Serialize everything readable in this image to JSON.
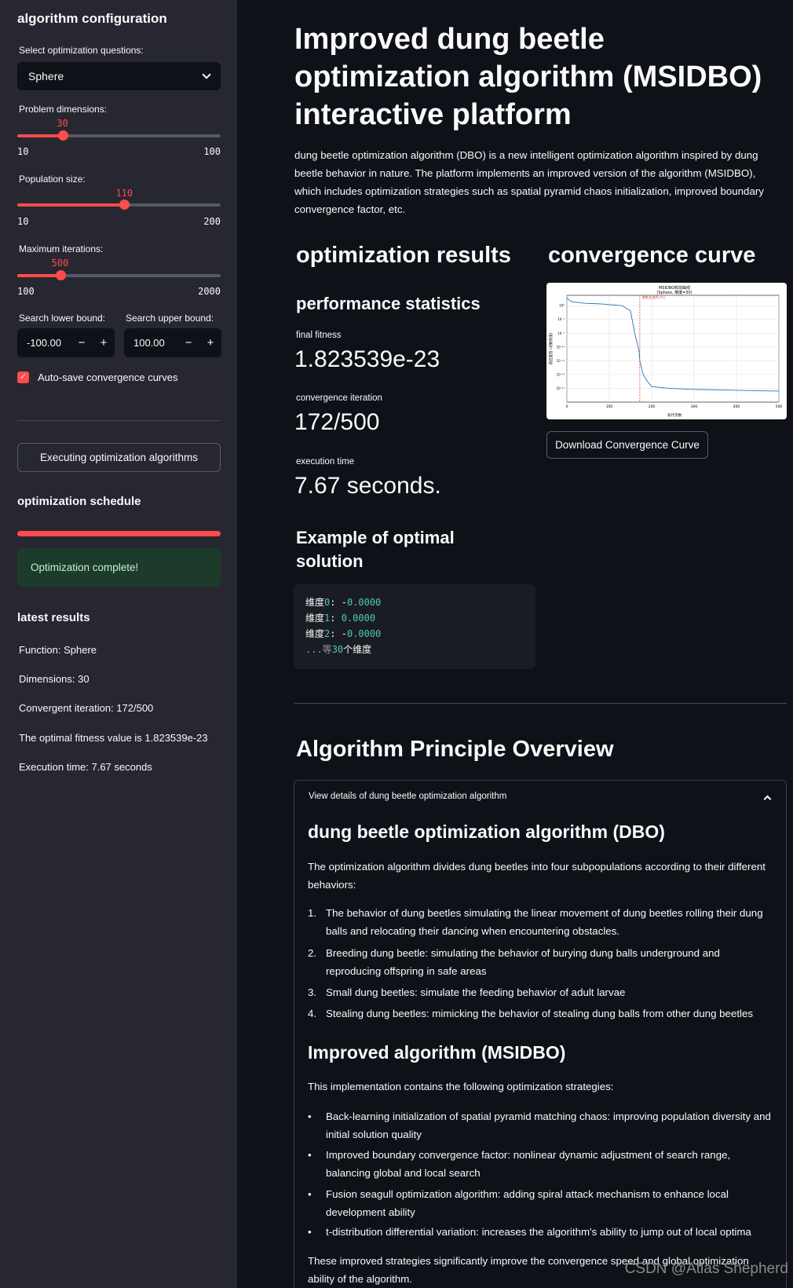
{
  "sidebar": {
    "title": "algorithm configuration",
    "select_label": "Select optimization questions:",
    "select_value": "Sphere",
    "sliders": [
      {
        "label": "Problem dimensions:",
        "value": "30",
        "min": "10",
        "max": "100",
        "fraction": 0.2222
      },
      {
        "label": "Population size:",
        "value": "110",
        "min": "10",
        "max": "200",
        "fraction": 0.5263
      },
      {
        "label": "Maximum iterations:",
        "value": "500",
        "min": "100",
        "max": "2000",
        "fraction": 0.2105
      }
    ],
    "lower_label": "Search lower bound:",
    "lower_value": "-100.00",
    "upper_label": "Search upper bound:",
    "upper_value": "100.00",
    "minus": "−",
    "plus": "+",
    "checkbox_label": "Auto-save convergence curves",
    "run_button": "Executing optimization algorithms",
    "schedule_heading": "optimization schedule",
    "success_text": "Optimization complete!",
    "latest_heading": "latest results",
    "latest_items": [
      "Function: Sphere",
      "Dimensions: 30",
      "Convergent iteration: 172/500",
      "The optimal fitness value is 1.823539e-23",
      "Execution time: 7.67 seconds"
    ]
  },
  "main": {
    "title": "Improved dung beetle optimization algorithm (MSIDBO) interactive platform",
    "intro": "dung beetle optimization algorithm (DBO) is a new intelligent optimization algorithm inspired by dung beetle behavior in nature. The platform implements an improved version of the algorithm (MSIDBO), which includes optimization strategies such as spatial pyramid chaos initialization, improved boundary convergence factor, etc.",
    "results_heading": "optimization results",
    "curve_heading": "convergence curve",
    "perf_heading": "performance statistics",
    "metrics": [
      {
        "label": "final fitness",
        "value": "1.823539e-23"
      },
      {
        "label": "convergence iteration",
        "value": "172/500"
      },
      {
        "label": "execution time",
        "value": "7.67 seconds."
      }
    ],
    "example_heading": "Example of optimal solution",
    "code_lines": [
      {
        "a": "维度",
        "n": "0",
        "b": ": -",
        "v": "0.0000"
      },
      {
        "a": "维度",
        "n": "1",
        "b": ": ",
        "v": "0.0000"
      },
      {
        "a": "维度",
        "n": "2",
        "b": ": -",
        "v": "0.0000"
      },
      {
        "a": "...等",
        "n": "30",
        "b": "个维度",
        "v": ""
      }
    ],
    "download_button": "Download Convergence Curve",
    "principle_heading": "Algorithm Principle Overview",
    "expander": {
      "header": "View details of dung beetle optimization algorithm",
      "dbo_heading": "dung beetle optimization algorithm (DBO)",
      "dbo_intro": "The optimization algorithm divides dung beetles into four subpopulations according to their different behaviors:",
      "dbo_items": [
        "The behavior of dung beetles simulating the linear movement of dung beetles rolling their dung balls and relocating their dancing when encountering obstacles.",
        "Breeding dung beetle: simulating the behavior of burying dung balls underground and reproducing offspring in safe areas",
        "Small dung beetles: simulate the feeding behavior of adult larvae",
        "Stealing dung beetles: mimicking the behavior of stealing dung balls from other dung beetles"
      ],
      "msidbo_heading": "Improved algorithm (MSIDBO)",
      "msidbo_intro": "This implementation contains the following optimization strategies:",
      "msidbo_items": [
        "Back-learning initialization of spatial pyramid matching chaos: improving population diversity and initial solution quality",
        "Improved boundary convergence factor: nonlinear dynamic adjustment of search range, balancing global and local search",
        "Fusion seagull optimization algorithm: adding spiral attack mechanism to enhance local development ability",
        "t-distribution differential variation: increases the algorithm's ability to jump out of local optima"
      ],
      "closing": "These improved strategies significantly improve the convergence speed and global optimization ability of the algorithm."
    }
  },
  "chart_data": {
    "type": "line",
    "title": "MSIDBO收敛曲线",
    "subtitle": "(Sphere, 维度=30)",
    "xlabel": "迭代次数",
    "ylabel": "适应度值 (对数刻度)",
    "log_y": true,
    "xlim": [
      0,
      500
    ],
    "ylim_exp": [
      -26,
      5
    ],
    "x_ticks": [
      "0",
      "100",
      "200",
      "300",
      "400",
      "500"
    ],
    "y_ticks": [
      "10²",
      "10⁻²",
      "10⁻⁶",
      "10⁻¹⁰",
      "10⁻¹⁴",
      "10⁻¹⁸",
      "10⁻²²"
    ],
    "convergence_marker_x": 172,
    "marker_label": "收敛点(迭代172)",
    "series": [
      {
        "x": [
          0,
          10,
          40,
          80,
          130,
          150,
          160,
          170,
          172,
          180,
          190,
          200,
          240,
          300,
          380,
          450,
          500
        ],
        "log10_y": [
          4.2,
          3.2,
          2.7,
          2.5,
          2.0,
          0.5,
          -6,
          -11,
          -14,
          -18,
          -20,
          -21.5,
          -22,
          -22.3,
          -22.5,
          -22.7,
          -22.8
        ]
      }
    ],
    "line_color": "#1f77b4",
    "marker_color": "#d62728"
  }
}
